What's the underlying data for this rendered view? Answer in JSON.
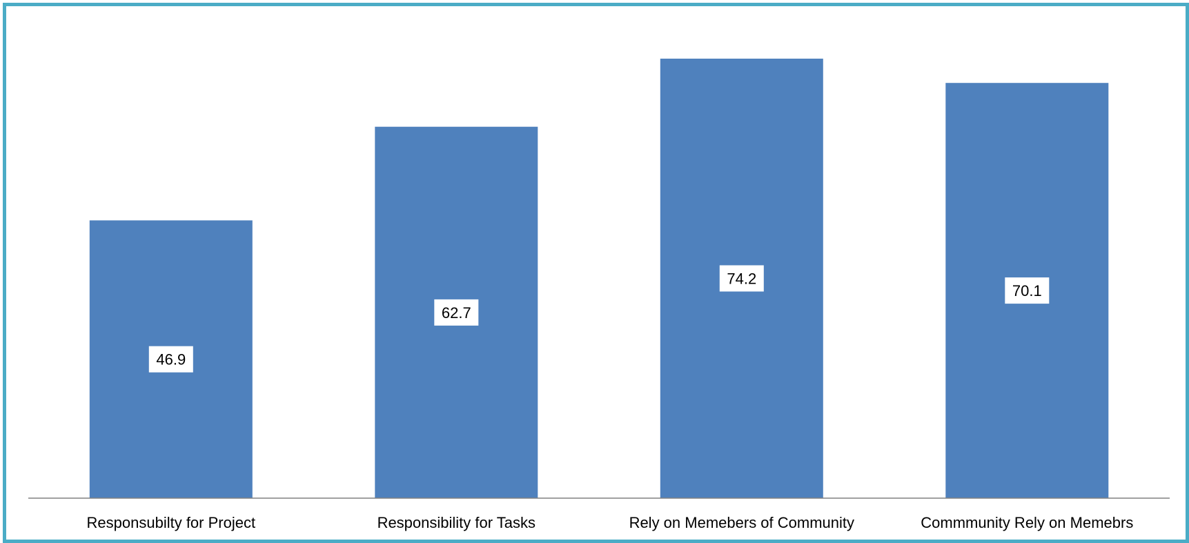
{
  "chart_data": {
    "type": "bar",
    "categories": [
      "Responsubilty for Project",
      "Responsibility for Tasks",
      "Rely on Memebers of Community",
      "Commmunity Rely on Memebrs"
    ],
    "values": [
      46.9,
      62.7,
      74.2,
      70.1
    ],
    "data_labels": [
      "46.9",
      "62.7",
      "74.2",
      "70.1"
    ],
    "ylim": [
      0,
      80
    ],
    "grid": false,
    "legend": "none",
    "colors": {
      "bar": "#4f81bd",
      "frame": "#4bacc6",
      "axis": "#808080",
      "label_box": "#ffffff"
    }
  }
}
